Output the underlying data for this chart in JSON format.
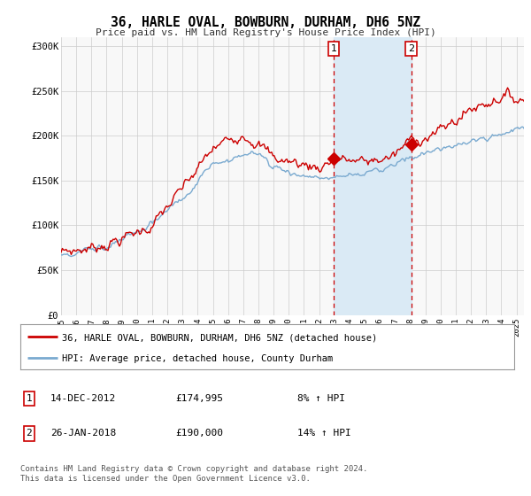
{
  "title": "36, HARLE OVAL, BOWBURN, DURHAM, DH6 5NZ",
  "subtitle": "Price paid vs. HM Land Registry's House Price Index (HPI)",
  "ylabel_ticks": [
    "£0",
    "£50K",
    "£100K",
    "£150K",
    "£200K",
    "£250K",
    "£300K"
  ],
  "ytick_values": [
    0,
    50000,
    100000,
    150000,
    200000,
    250000,
    300000
  ],
  "ylim": [
    0,
    310000
  ],
  "xlim_start": 1995.0,
  "xlim_end": 2025.5,
  "red_line_color": "#cc0000",
  "blue_line_color": "#7aaad0",
  "shade_color": "#daeaf5",
  "marker1_date": 2012.96,
  "marker2_date": 2018.07,
  "marker1_value": 174995,
  "marker2_value": 190000,
  "legend_label1": "36, HARLE OVAL, BOWBURN, DURHAM, DH6 5NZ (detached house)",
  "legend_label2": "HPI: Average price, detached house, County Durham",
  "table_row1_num": "1",
  "table_row1_date": "14-DEC-2012",
  "table_row1_price": "£174,995",
  "table_row1_hpi": "8% ↑ HPI",
  "table_row2_num": "2",
  "table_row2_date": "26-JAN-2018",
  "table_row2_price": "£190,000",
  "table_row2_hpi": "14% ↑ HPI",
  "footer": "Contains HM Land Registry data © Crown copyright and database right 2024.\nThis data is licensed under the Open Government Licence v3.0.",
  "background_color": "#ffffff",
  "plot_bg_color": "#f8f8f8"
}
